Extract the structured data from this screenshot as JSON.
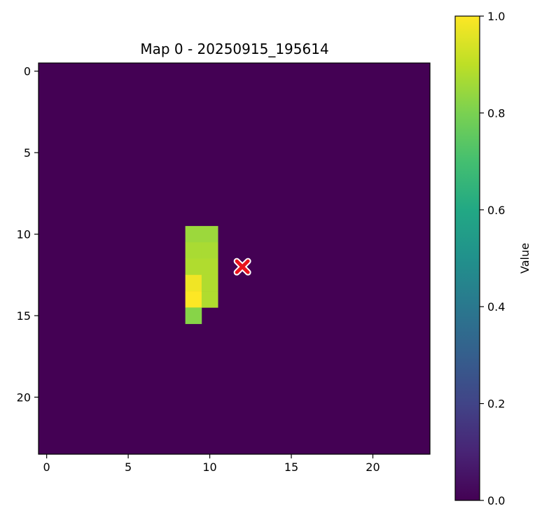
{
  "chart_data": {
    "type": "heatmap",
    "title": "Map 0 - 20250915_195614",
    "grid_size": [
      24,
      24
    ],
    "xlim": [
      -0.5,
      23.5
    ],
    "ylim": [
      23.5,
      -0.5
    ],
    "x_ticks": [
      0,
      5,
      10,
      15,
      20
    ],
    "y_ticks": [
      0,
      5,
      10,
      15,
      20
    ],
    "x_tick_labels": [
      "0",
      "5",
      "10",
      "15",
      "20"
    ],
    "y_tick_labels": [
      "0",
      "5",
      "10",
      "15",
      "20"
    ],
    "colormap": "viridis",
    "background_value": 0.0,
    "cells": [
      {
        "row": 10,
        "col": 9,
        "value": 0.85
      },
      {
        "row": 10,
        "col": 10,
        "value": 0.85
      },
      {
        "row": 11,
        "col": 9,
        "value": 0.87
      },
      {
        "row": 11,
        "col": 10,
        "value": 0.87
      },
      {
        "row": 12,
        "col": 9,
        "value": 0.88
      },
      {
        "row": 12,
        "col": 10,
        "value": 0.88
      },
      {
        "row": 13,
        "col": 9,
        "value": 0.98
      },
      {
        "row": 13,
        "col": 10,
        "value": 0.88
      },
      {
        "row": 14,
        "col": 9,
        "value": 1.0
      },
      {
        "row": 14,
        "col": 10,
        "value": 0.88
      },
      {
        "row": 15,
        "col": 9,
        "value": 0.82
      }
    ],
    "marker": {
      "x": 12,
      "y": 12,
      "symbol": "X",
      "color": "#e8141c",
      "edge_color": "#ffffff"
    },
    "colorbar": {
      "label": "Value",
      "range": [
        0.0,
        1.0
      ],
      "ticks": [
        0.0,
        0.2,
        0.4,
        0.6,
        0.8,
        1.0
      ],
      "tick_labels": [
        "0.0",
        "0.2",
        "0.4",
        "0.6",
        "0.8",
        "1.0"
      ]
    }
  }
}
